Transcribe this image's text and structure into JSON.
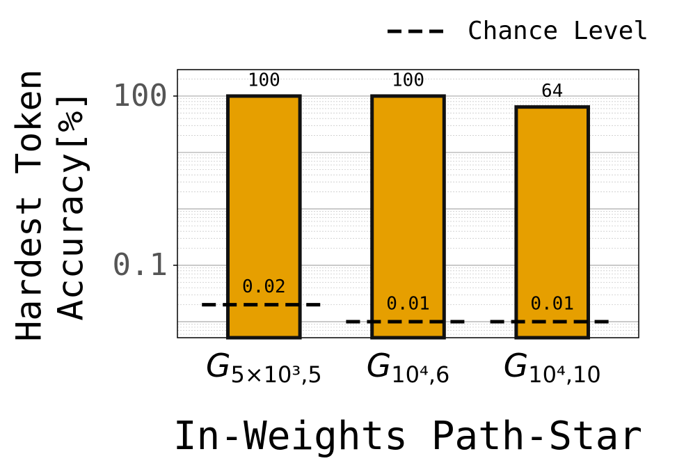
{
  "chart_data": {
    "type": "bar",
    "categories": [
      {
        "main": "G",
        "sub": "5×10³,5"
      },
      {
        "main": "G",
        "sub": "10⁴,6"
      },
      {
        "main": "G",
        "sub": "10⁴,10"
      }
    ],
    "values": [
      100,
      100,
      64
    ],
    "color": "#e69f00",
    "chance": {
      "name": "Chance Level",
      "values": [
        0.02,
        0.01,
        0.01
      ]
    },
    "ylabel": [
      "Hardest Token",
      "Accuracy[%]"
    ],
    "xlabel": "In-Weights Path-Star",
    "ylim": [
      0.0052,
      294
    ],
    "yticks": [
      0.1,
      100
    ],
    "log_y": true,
    "grid": true,
    "legend": "upper right"
  }
}
